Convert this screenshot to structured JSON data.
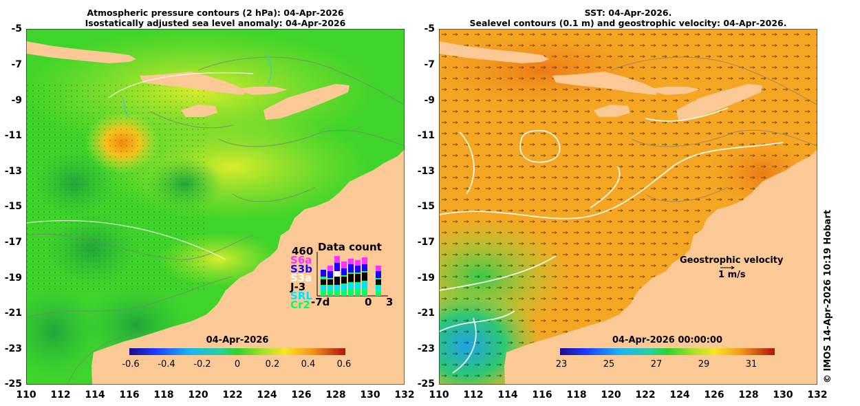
{
  "left_map": {
    "title_line1": "Atmospheric pressure contours (2 hPa): 04-Apr-2026",
    "title_line2": "Isostatically adjusted sea level anomaly: 04-Apr-2026",
    "colorbar": {
      "label": "04-Apr-2026",
      "range": [
        -0.6,
        0.6
      ],
      "ticks": [
        "-0.6",
        "-0.4",
        "-0.2",
        "0",
        "0.2",
        "0.4",
        "0.6"
      ]
    },
    "data_count": {
      "title": "Data count",
      "max": "460",
      "missions": [
        {
          "name": "S6a",
          "color": "#ff33ff"
        },
        {
          "name": "S3b",
          "color": "#1a00ff"
        },
        {
          "name": "S3a",
          "color": "#ffffff"
        },
        {
          "name": "J-3",
          "color": "#000000"
        },
        {
          "name": "SRL",
          "color": "#00e5ff"
        },
        {
          "name": "Cr2",
          "color": "#00ff66"
        }
      ],
      "x_labels": [
        "-7d",
        "0",
        "3"
      ]
    }
  },
  "right_map": {
    "title_line1": "SST: 04-Apr-2026.",
    "title_line2": "Sealevel contours (0.1 m) and geostrophic velocity: 04-Apr-2026.",
    "colorbar": {
      "label": "04-Apr-2026 00:00:00",
      "range": [
        23,
        32
      ],
      "ticks": [
        "23",
        "25",
        "27",
        "29",
        "31"
      ]
    },
    "velocity_legend": {
      "label": "Geostrophic velocity",
      "speed": "1 m/s"
    }
  },
  "axes": {
    "y_ticks": [
      "-5",
      "-7",
      "-9",
      "-11",
      "-13",
      "-15",
      "-17",
      "-19",
      "-21",
      "-23",
      "-25"
    ],
    "x_ticks": [
      "110",
      "112",
      "114",
      "116",
      "118",
      "120",
      "122",
      "124",
      "126",
      "128",
      "130",
      "132"
    ],
    "x_range": [
      110,
      132
    ],
    "y_range": [
      -25,
      -5
    ]
  },
  "copyright": "© IMOS 14-Apr-2026 10:19 Hobart",
  "colors": {
    "land": "#fbc996",
    "sla_base": "#3fd42a",
    "sst_base": "#f5a623"
  }
}
